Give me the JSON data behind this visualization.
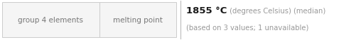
{
  "left_labels": [
    "group 4 elements",
    "melting point"
  ],
  "main_value": "1855 °C",
  "main_value_suffix": " (degrees Celsius) (median)",
  "sub_text": "(based on 3 values; 1 unavailable)",
  "bg_color": "#ffffff",
  "box_bg": "#f5f5f5",
  "box_border": "#cccccc",
  "divider_color": "#bbbbbb",
  "left_text_color": "#777777",
  "main_value_color": "#1a1a1a",
  "annotation_color": "#999999",
  "figwidth": 5.02,
  "figheight": 0.58,
  "dpi": 100
}
